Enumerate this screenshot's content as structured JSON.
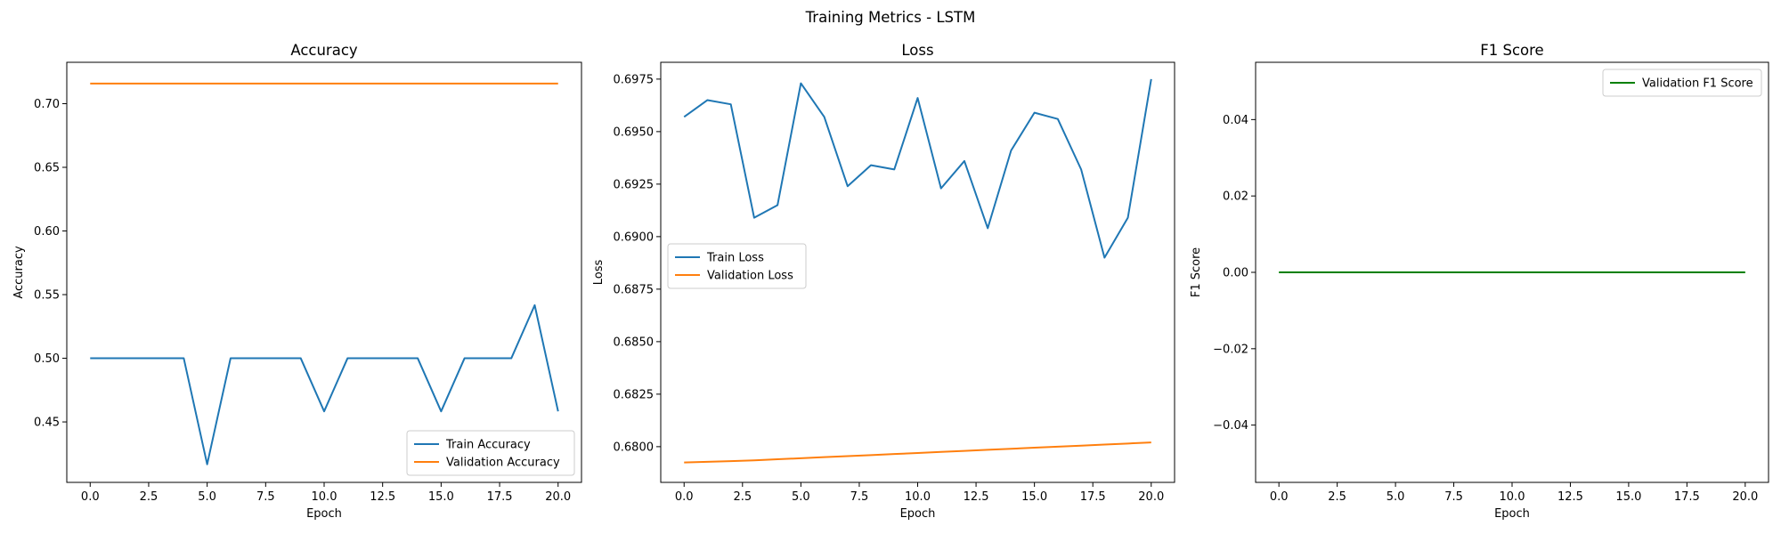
{
  "figure": {
    "suptitle": "Training Metrics - LSTM"
  },
  "chart_data": [
    {
      "type": "line",
      "title": "Accuracy",
      "xlabel": "Epoch",
      "ylabel": "Accuracy",
      "xlim": [
        -1.0,
        21.0
      ],
      "ylim": [
        0.4025,
        0.7325
      ],
      "xticks": [
        0.0,
        2.5,
        5.0,
        7.5,
        10.0,
        12.5,
        15.0,
        17.5,
        20.0
      ],
      "xtick_labels": [
        "0.0",
        "2.5",
        "5.0",
        "7.5",
        "10.0",
        "12.5",
        "15.0",
        "17.5",
        "20.0"
      ],
      "yticks": [
        0.45,
        0.5,
        0.55,
        0.6,
        0.65,
        0.7
      ],
      "ytick_labels": [
        "0.45",
        "0.50",
        "0.55",
        "0.60",
        "0.65",
        "0.70"
      ],
      "grid": false,
      "legend_loc": "lower-right",
      "series": [
        {
          "name": "Train Accuracy",
          "color": "#1f77b4",
          "x": [
            0,
            1,
            2,
            3,
            4,
            5,
            6,
            7,
            8,
            9,
            10,
            11,
            12,
            13,
            14,
            15,
            16,
            17,
            18,
            19,
            20
          ],
          "values": [
            0.5,
            0.5,
            0.5,
            0.5,
            0.5,
            0.4167,
            0.5,
            0.5,
            0.5,
            0.5,
            0.4583,
            0.5,
            0.5,
            0.5,
            0.5,
            0.4583,
            0.5,
            0.5,
            0.5,
            0.5417,
            0.4583
          ]
        },
        {
          "name": "Validation Accuracy",
          "color": "#ff7f0e",
          "x": [
            0,
            1,
            2,
            3,
            4,
            5,
            6,
            7,
            8,
            9,
            10,
            11,
            12,
            13,
            14,
            15,
            16,
            17,
            18,
            19,
            20
          ],
          "values": [
            0.7158,
            0.7158,
            0.7158,
            0.7158,
            0.7158,
            0.7158,
            0.7158,
            0.7158,
            0.7158,
            0.7158,
            0.7158,
            0.7158,
            0.7158,
            0.7158,
            0.7158,
            0.7158,
            0.7158,
            0.7158,
            0.7158,
            0.7158,
            0.7158
          ]
        }
      ]
    },
    {
      "type": "line",
      "title": "Loss",
      "xlabel": "Epoch",
      "ylabel": "Loss",
      "xlim": [
        -1.0,
        21.0
      ],
      "ylim": [
        0.6783,
        0.6983
      ],
      "xticks": [
        0.0,
        2.5,
        5.0,
        7.5,
        10.0,
        12.5,
        15.0,
        17.5,
        20.0
      ],
      "xtick_labels": [
        "0.0",
        "2.5",
        "5.0",
        "7.5",
        "10.0",
        "12.5",
        "15.0",
        "17.5",
        "20.0"
      ],
      "yticks": [
        0.68,
        0.6825,
        0.685,
        0.6875,
        0.69,
        0.6925,
        0.695,
        0.6975
      ],
      "ytick_labels": [
        "0.6800",
        "0.6825",
        "0.6850",
        "0.6875",
        "0.6900",
        "0.6925",
        "0.6950",
        "0.6975"
      ],
      "grid": false,
      "legend_loc": "center-left",
      "series": [
        {
          "name": "Train Loss",
          "color": "#1f77b4",
          "x": [
            0,
            1,
            2,
            3,
            4,
            5,
            6,
            7,
            8,
            9,
            10,
            11,
            12,
            13,
            14,
            15,
            16,
            17,
            18,
            19,
            20
          ],
          "values": [
            0.6957,
            0.6965,
            0.6963,
            0.6909,
            0.6915,
            0.6973,
            0.6957,
            0.6924,
            0.6934,
            0.6932,
            0.6966,
            0.6923,
            0.6936,
            0.6904,
            0.6941,
            0.6959,
            0.6956,
            0.6932,
            0.689,
            0.6909,
            0.6975
          ]
        },
        {
          "name": "Validation Loss",
          "color": "#ff7f0e",
          "x": [
            0,
            1,
            2,
            3,
            4,
            5,
            6,
            7,
            8,
            9,
            10,
            11,
            12,
            13,
            14,
            15,
            16,
            17,
            18,
            19,
            20
          ],
          "values": [
            0.67925,
            0.67928,
            0.67931,
            0.67935,
            0.6794,
            0.67945,
            0.6795,
            0.67955,
            0.6796,
            0.67965,
            0.6797,
            0.67975,
            0.6798,
            0.67985,
            0.6799,
            0.67995,
            0.68,
            0.68005,
            0.6801,
            0.68015,
            0.6802
          ]
        }
      ]
    },
    {
      "type": "line",
      "title": "F1 Score",
      "xlabel": "Epoch",
      "ylabel": "F1 Score",
      "xlim": [
        -1.0,
        21.0
      ],
      "ylim": [
        -0.055,
        0.055
      ],
      "xticks": [
        0.0,
        2.5,
        5.0,
        7.5,
        10.0,
        12.5,
        15.0,
        17.5,
        20.0
      ],
      "xtick_labels": [
        "0.0",
        "2.5",
        "5.0",
        "7.5",
        "10.0",
        "12.5",
        "15.0",
        "17.5",
        "20.0"
      ],
      "yticks": [
        -0.04,
        -0.02,
        0.0,
        0.02,
        0.04
      ],
      "ytick_labels": [
        "−0.04",
        "−0.02",
        "0.00",
        "0.02",
        "0.04"
      ],
      "grid": false,
      "legend_loc": "top-right",
      "series": [
        {
          "name": "Validation F1 Score",
          "color": "#008000",
          "x": [
            0,
            1,
            2,
            3,
            4,
            5,
            6,
            7,
            8,
            9,
            10,
            11,
            12,
            13,
            14,
            15,
            16,
            17,
            18,
            19,
            20
          ],
          "values": [
            0,
            0,
            0,
            0,
            0,
            0,
            0,
            0,
            0,
            0,
            0,
            0,
            0,
            0,
            0,
            0,
            0,
            0,
            0,
            0,
            0
          ]
        }
      ]
    }
  ]
}
